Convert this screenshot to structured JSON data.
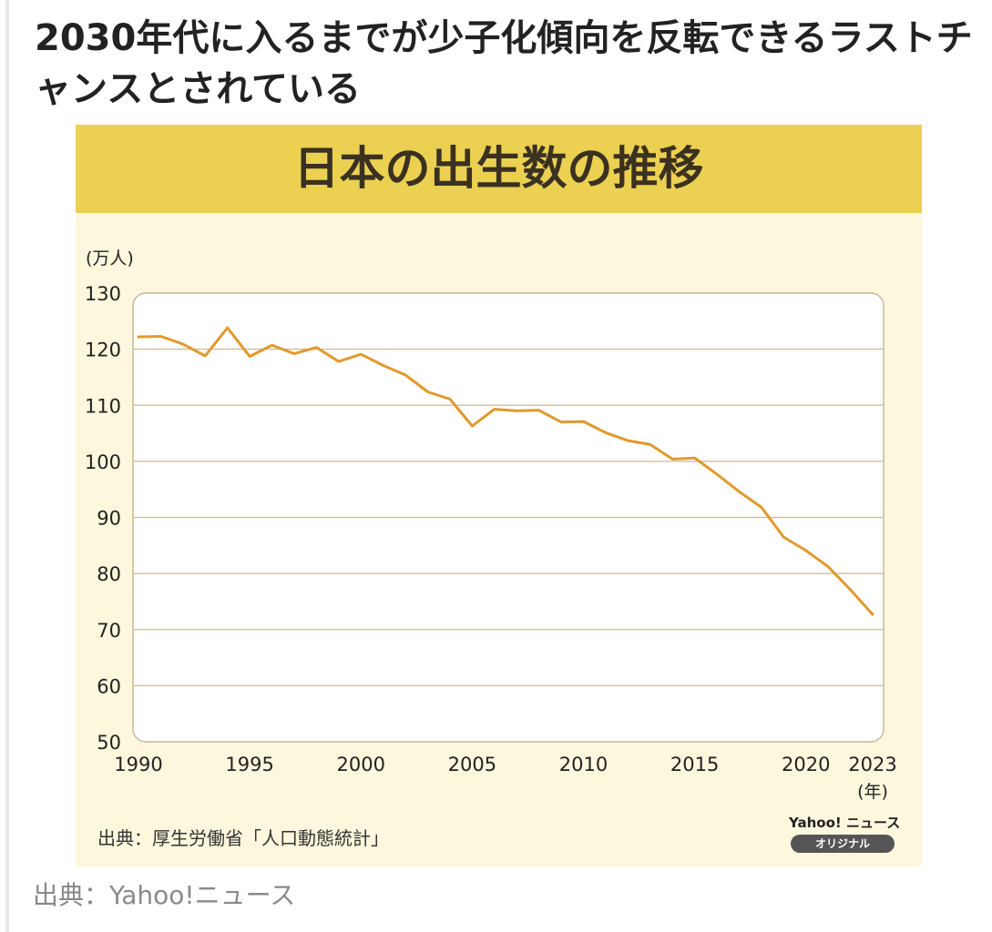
{
  "headline": "2030年代に入るまでが少子化傾向を反転できるラストチャンスとされている",
  "source_note": "出典：厚生労働省「人口動態統計」",
  "brand": {
    "name": "Yahoo! ニュース",
    "badge": "オリジナル"
  },
  "footer_source": "出典：Yahoo!ニュース",
  "colors": {
    "banner": "#ecd052",
    "card_background": "#fdf7dd",
    "line": "#e09a2c",
    "grid": "#c9b99a"
  },
  "chart_data": {
    "type": "line",
    "title": "日本の出生数の推移",
    "ylabel": "(万人)",
    "xlabel": "(年)",
    "ylim": [
      50,
      130
    ],
    "yticks": [
      50,
      60,
      70,
      80,
      90,
      100,
      110,
      120,
      130
    ],
    "xticks": [
      1990,
      1995,
      2000,
      2005,
      2010,
      2015,
      2020,
      2023
    ],
    "xlim": [
      1990,
      2023
    ],
    "grid": true,
    "x": [
      1990,
      1991,
      1992,
      1993,
      1994,
      1995,
      1996,
      1997,
      1998,
      1999,
      2000,
      2001,
      2002,
      2003,
      2004,
      2005,
      2006,
      2007,
      2008,
      2009,
      2010,
      2011,
      2012,
      2013,
      2014,
      2015,
      2016,
      2017,
      2018,
      2019,
      2020,
      2021,
      2022,
      2023
    ],
    "series": [
      {
        "name": "",
        "values": [
          122.2,
          122.3,
          120.9,
          118.8,
          123.8,
          118.7,
          120.7,
          119.2,
          120.3,
          117.8,
          119.1,
          117.1,
          115.4,
          112.4,
          111.1,
          106.3,
          109.3,
          109.0,
          109.1,
          107.0,
          107.1,
          105.1,
          103.7,
          103.0,
          100.4,
          100.6,
          97.7,
          94.6,
          91.8,
          86.5,
          84.1,
          81.2,
          77.1,
          72.7
        ]
      }
    ]
  }
}
